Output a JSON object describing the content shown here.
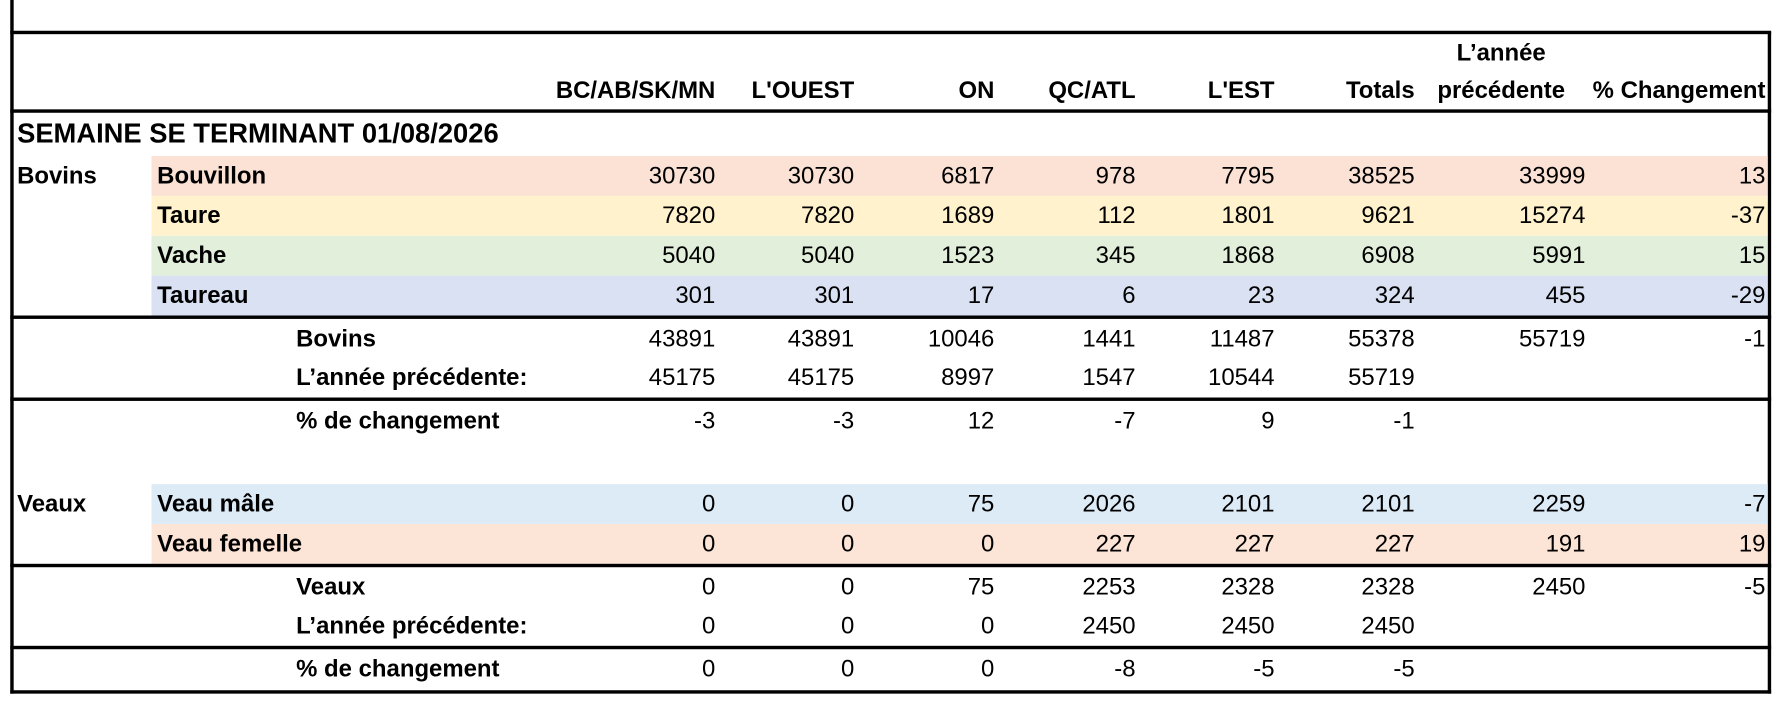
{
  "header": {
    "columns": [
      "BC/AB/SK/MN",
      "L'OUEST",
      "ON",
      "QC/ATL",
      "L'EST",
      "Totals",
      "L’année précédente",
      "% Changement"
    ]
  },
  "week": "SEMAINE SE TERMINANT 01/08/2026",
  "sections": [
    {
      "label": "Bovins",
      "rows": [
        {
          "name": "Bouvillon",
          "color": "#fbe2d5",
          "values": [
            30730,
            30730,
            6817,
            978,
            7795,
            38525,
            33999,
            13
          ]
        },
        {
          "name": "Taure",
          "color": "#fff2cc",
          "values": [
            7820,
            7820,
            1689,
            112,
            1801,
            9621,
            15274,
            -37
          ]
        },
        {
          "name": "Vache",
          "color": "#e2efda",
          "values": [
            5040,
            5040,
            1523,
            345,
            1868,
            6908,
            5991,
            15
          ]
        },
        {
          "name": "Taureau",
          "color": "#d9e1f2",
          "values": [
            301,
            301,
            17,
            6,
            23,
            324,
            455,
            -29
          ]
        }
      ],
      "total": {
        "name": "Bovins",
        "values": [
          43891,
          43891,
          10046,
          1441,
          11487,
          55378,
          55719,
          -1
        ]
      },
      "last_year": {
        "name": "L’année précédente:",
        "values": [
          45175,
          45175,
          8997,
          1547,
          10544,
          55719
        ]
      },
      "change": {
        "name": "% de changement",
        "values": [
          -3,
          -3,
          12,
          -7,
          9,
          -1
        ]
      }
    },
    {
      "label": "Veaux",
      "rows": [
        {
          "name": "Veau mâle",
          "color": "#ddebf7",
          "values": [
            0,
            0,
            75,
            2026,
            2101,
            2101,
            2259,
            -7
          ]
        },
        {
          "name": "Veau femelle",
          "color": "#fce4d6",
          "values": [
            0,
            0,
            0,
            227,
            227,
            227,
            191,
            19
          ]
        }
      ],
      "total": {
        "name": "Veaux",
        "values": [
          0,
          0,
          75,
          2253,
          2328,
          2328,
          2450,
          -5
        ]
      },
      "last_year": {
        "name": "L’année précédente:",
        "values": [
          0,
          0,
          0,
          2450,
          2450,
          2450
        ]
      },
      "change": {
        "name": "% de changement",
        "values": [
          0,
          0,
          0,
          -8,
          -5,
          -5
        ]
      }
    }
  ]
}
